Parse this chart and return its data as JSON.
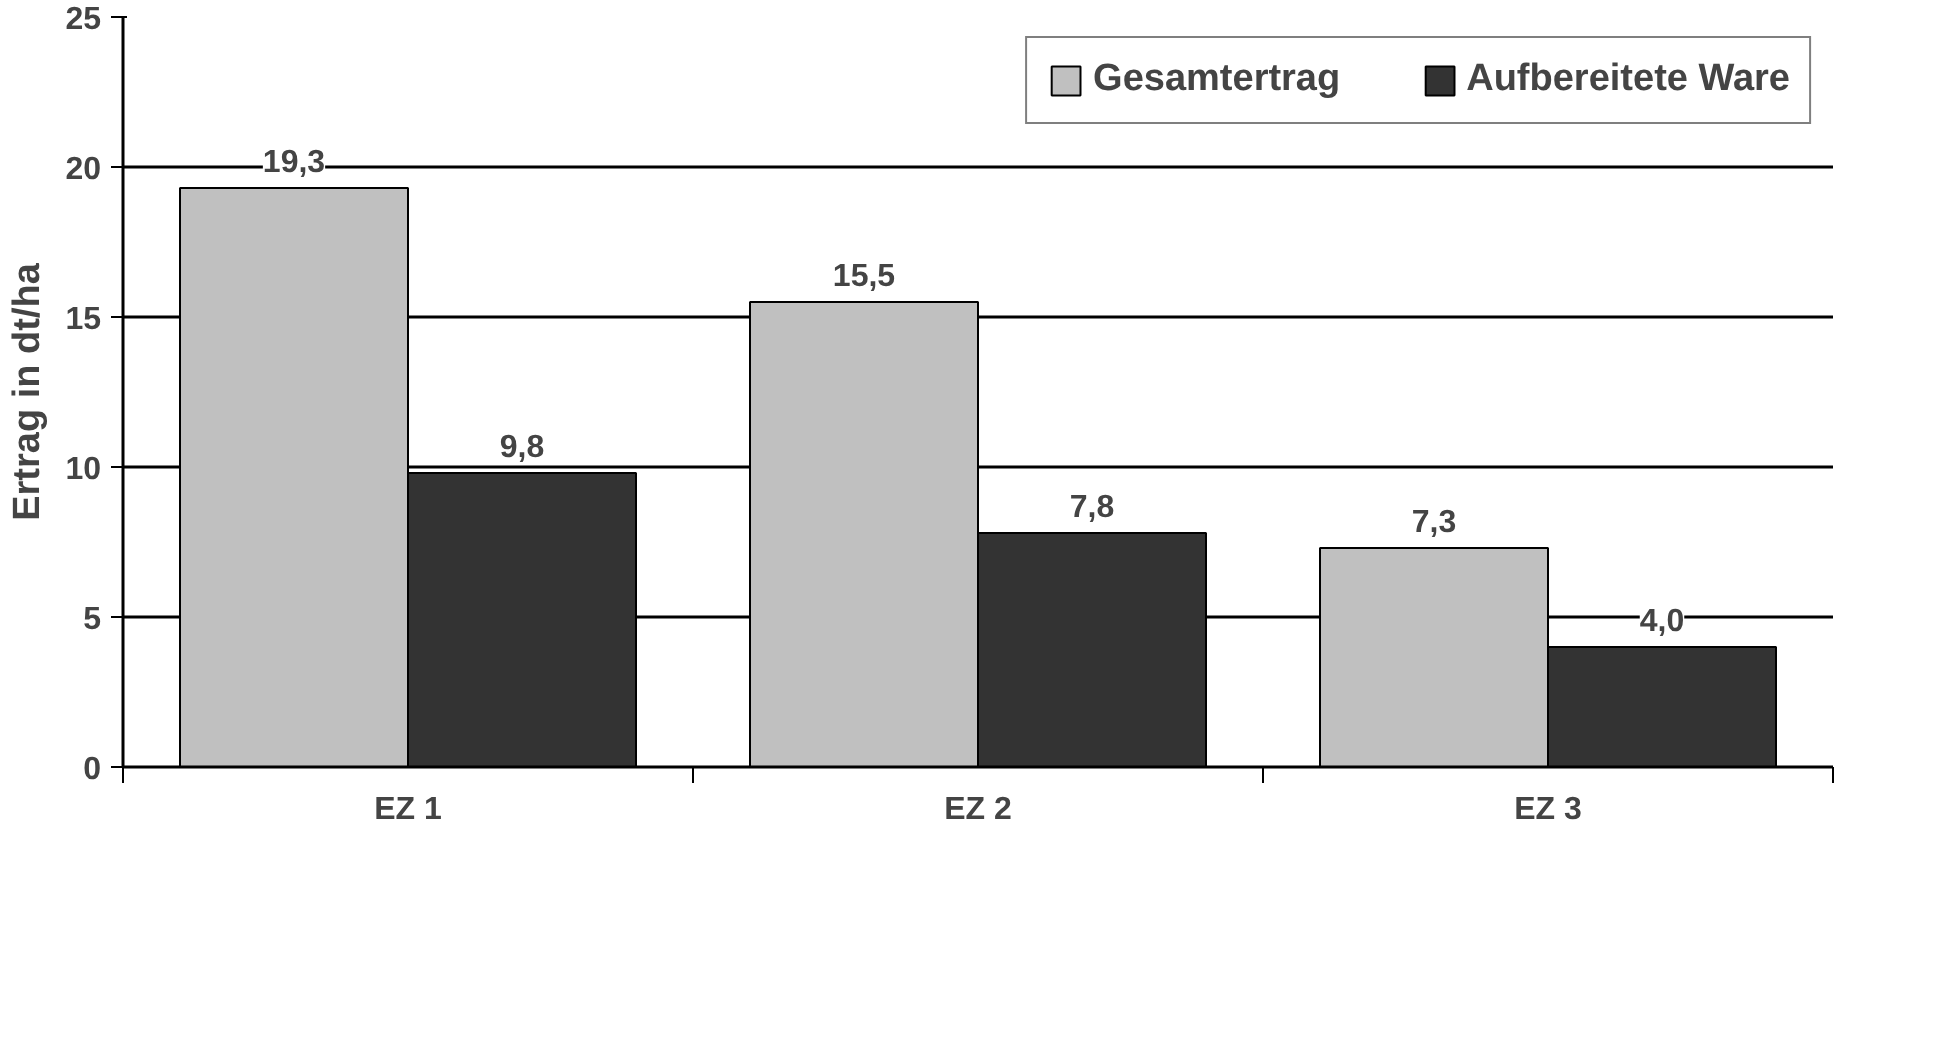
{
  "chart_data": {
    "type": "bar",
    "ylabel": "Ertrag in dt/ha",
    "categories": [
      "EZ 1",
      "EZ 2",
      "EZ 3"
    ],
    "series": [
      {
        "name": "Gesamtertrag",
        "color": "#c0c0c0",
        "values": [
          19.3,
          15.5,
          7.3
        ],
        "value_labels": [
          "19,3",
          "15,5",
          "7,3"
        ]
      },
      {
        "name": "Aufbereitete Ware",
        "color": "#333333",
        "values": [
          9.8,
          7.8,
          4.0
        ],
        "value_labels": [
          "9,8",
          "7,8",
          "4,0"
        ]
      }
    ],
    "ylim": [
      0,
      25
    ],
    "yticks": [
      0,
      5,
      10,
      15,
      20,
      25
    ],
    "grid": "y",
    "legend": "top"
  }
}
